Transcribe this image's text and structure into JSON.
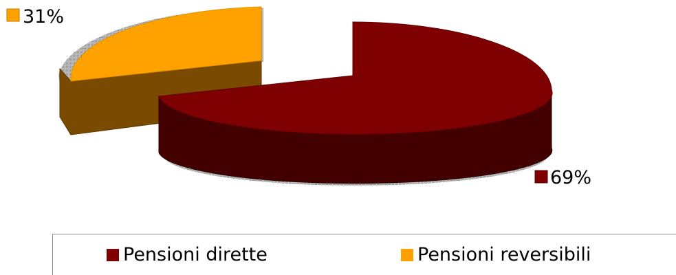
{
  "chart_data": {
    "type": "pie",
    "title": "",
    "categories": [
      "Pensioni dirette",
      "Pensioni reversibili"
    ],
    "values": [
      69,
      31
    ],
    "data_labels": [
      "69%",
      "31%"
    ],
    "colors": [
      "#7f0000",
      "#ffa200"
    ],
    "side_colors": [
      "#420000",
      "#7a4a00"
    ],
    "legend": {
      "placement": "bottom",
      "items": [
        {
          "label": "Pensioni dirette",
          "color": "#7f0000"
        },
        {
          "label": "Pensioni reversibili",
          "color": "#ffa200"
        }
      ]
    },
    "style": "3d-exploded"
  }
}
